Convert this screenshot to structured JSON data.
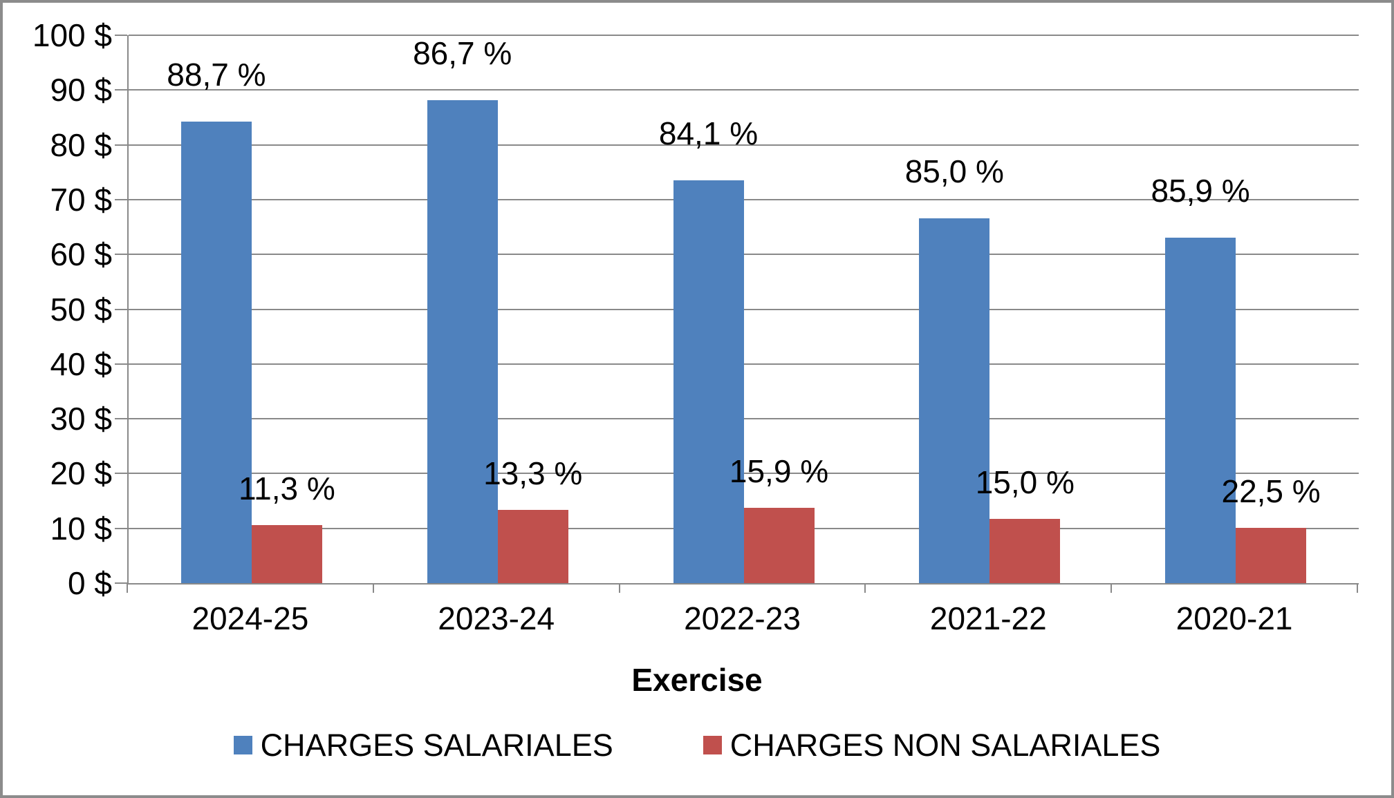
{
  "chart_data": {
    "type": "bar",
    "title": "",
    "xlabel": "Exercise",
    "ylabel": "",
    "categories": [
      "2024-25",
      "2023-24",
      "2022-23",
      "2021-22",
      "2020-21"
    ],
    "series": [
      {
        "name": "CHARGES SALARIALES",
        "color": "#4F81BD",
        "values": [
          84.2,
          88.2,
          73.5,
          66.6,
          63.1
        ],
        "data_labels": [
          "88,7 %",
          "86,7 %",
          "84,1 %",
          "85,0 %",
          "85,9 %"
        ]
      },
      {
        "name": "CHARGES NON SALARIALES",
        "color": "#C0504D",
        "values": [
          10.6,
          13.4,
          13.8,
          11.7,
          10.1
        ],
        "data_labels": [
          "11,3 %",
          "13,3 %",
          "15,9 %",
          "15,0 %",
          "22,5 %"
        ]
      }
    ],
    "y_axis": {
      "min": 0,
      "max": 100,
      "step": 10,
      "tick_suffix": " $",
      "tick_labels": [
        "0 $",
        "10 $",
        "20 $",
        "30 $",
        "40 $",
        "50 $",
        "60 $",
        "70 $",
        "80 $",
        "90 $",
        "100 $"
      ]
    },
    "ylim": [
      0,
      100
    ],
    "grid": true,
    "legend_position": "bottom",
    "colors": {
      "gridline": "#898989",
      "axis_line": "#898989",
      "outer_border": "#8C8C8C",
      "text": "#000000",
      "background": "#FFFFFF"
    }
  }
}
